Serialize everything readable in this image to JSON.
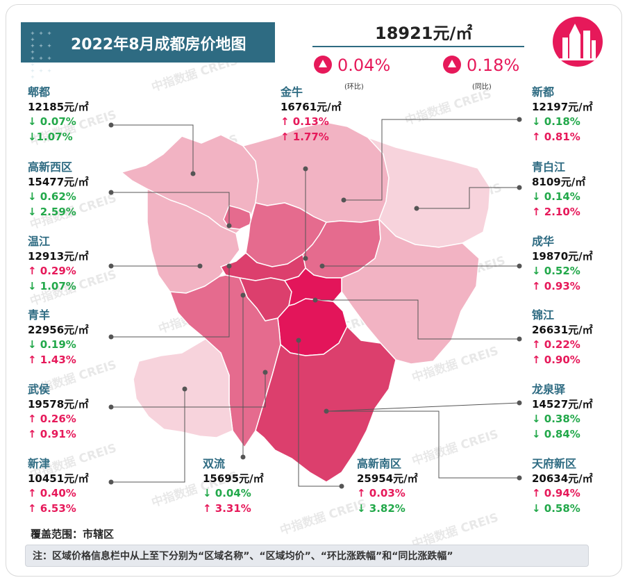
{
  "title": "2022年8月成都房价地图",
  "average_price": "18921元/㎡",
  "mom_change": "0.04%",
  "mom_label": "(环比)",
  "yoy_change": "0.18%",
  "yoy_label": "(同比)",
  "watermark": "中指数据 CREIS",
  "coverage": "覆盖范围：市辖区",
  "note": "注：区域价格信息栏中从上至下分别为“区域名称”、“区域均价”、“环比涨跌幅”和“同比涨跌幅”",
  "colors": {
    "accent": "#2e6b82",
    "up": "#e6195a",
    "down": "#22a84a",
    "price_level_1": "#f7d3dc",
    "price_level_2": "#f2b3c3",
    "price_level_3": "#ec90aa",
    "price_level_4": "#e56b8e",
    "price_level_5": "#dc3f6d",
    "price_level_6": "#e3155a"
  },
  "districts": [
    {
      "name": "郫都",
      "price": "12185元/㎡",
      "mom_dir": "down",
      "mom": "↓ 0.07%",
      "yoy_dir": "down",
      "yoy": "↓1.07%"
    },
    {
      "name": "高新西区",
      "price": "15477元/㎡",
      "mom_dir": "down",
      "mom": "↓ 0.62%",
      "yoy_dir": "down",
      "yoy": "↓ 2.59%"
    },
    {
      "name": "温江",
      "price": "12913元/㎡",
      "mom_dir": "up",
      "mom": "↑ 0.29%",
      "yoy_dir": "down",
      "yoy": "↓ 1.07%"
    },
    {
      "name": "青羊",
      "price": "22956元/㎡",
      "mom_dir": "down",
      "mom": "↓ 0.19%",
      "yoy_dir": "up",
      "yoy": "↑ 1.43%"
    },
    {
      "name": "武侯",
      "price": "19578元/㎡",
      "mom_dir": "up",
      "mom": "↑ 0.26%",
      "yoy_dir": "up",
      "yoy": "↑ 0.91%"
    },
    {
      "name": "新津",
      "price": "10451元/㎡",
      "mom_dir": "up",
      "mom": "↑ 0.40%",
      "yoy_dir": "up",
      "yoy": "↑ 6.53%"
    },
    {
      "name": "金牛",
      "price": "16761元/㎡",
      "mom_dir": "up",
      "mom": "↑ 0.13%",
      "yoy_dir": "up",
      "yoy": "↑ 1.77%"
    },
    {
      "name": "双流",
      "price": "15695元/㎡",
      "mom_dir": "down",
      "mom": "↓ 0.04%",
      "yoy_dir": "up",
      "yoy": "↑ 3.31%"
    },
    {
      "name": "高新南区",
      "price": "25954元/㎡",
      "mom_dir": "up",
      "mom": "↑ 0.03%",
      "yoy_dir": "down",
      "yoy": "↓ 3.82%"
    },
    {
      "name": "新都",
      "price": "12197元/㎡",
      "mom_dir": "down",
      "mom": "↓ 0.18%",
      "yoy_dir": "up",
      "yoy": "↑ 0.81%"
    },
    {
      "name": "青白江",
      "price": "8109元/㎡",
      "mom_dir": "down",
      "mom": "↓ 0.14%",
      "yoy_dir": "up",
      "yoy": "↑ 2.10%"
    },
    {
      "name": "成华",
      "price": "19870元/㎡",
      "mom_dir": "down",
      "mom": "↓ 0.52%",
      "yoy_dir": "up",
      "yoy": "↑ 0.93%"
    },
    {
      "name": "锦江",
      "price": "26631元/㎡",
      "mom_dir": "up",
      "mom": "↑ 0.22%",
      "yoy_dir": "up",
      "yoy": "↑ 0.90%"
    },
    {
      "name": "龙泉驿",
      "price": "14527元/㎡",
      "mom_dir": "down",
      "mom": "↓ 0.38%",
      "yoy_dir": "down",
      "yoy": "↓ 0.84%"
    },
    {
      "name": "天府新区",
      "price": "20634元/㎡",
      "mom_dir": "up",
      "mom": "↑ 0.94%",
      "yoy_dir": "down",
      "yoy": "↓ 0.58%"
    }
  ]
}
